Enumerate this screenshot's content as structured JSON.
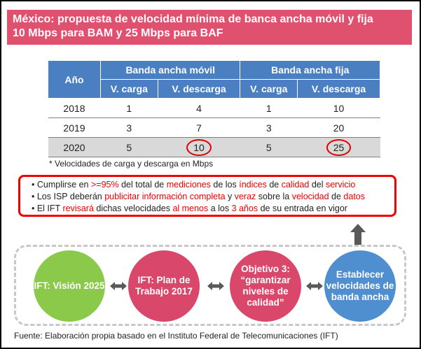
{
  "title": {
    "line1": "México: propuesta de velocidad mínima de banca ancha móvil y fija",
    "line2": "10 Mbps para BAM y 25 Mbps para BAF"
  },
  "table": {
    "col_year": "Año",
    "group_movil": "Banda ancha móvil",
    "group_fija": "Banda ancha fija",
    "sub_carga": "V. carga",
    "sub_descarga": "V. descarga",
    "rows": [
      {
        "year": "2018",
        "m_carga": "1",
        "m_descarga": "4",
        "f_carga": "1",
        "f_descarga": "10"
      },
      {
        "year": "2019",
        "m_carga": "3",
        "m_descarga": "7",
        "f_carga": "3",
        "f_descarga": "20"
      },
      {
        "year": "2020",
        "m_carga": "5",
        "m_descarga": "10",
        "f_carga": "5",
        "f_descarga": "25"
      }
    ]
  },
  "note": "* Velocidades de carga y descarga en Mbps",
  "bullets": {
    "b1": [
      "• Cumplirse en ",
      ">=95%",
      " del total de ",
      "mediciones",
      " de los ",
      "índices",
      " de ",
      "calidad",
      " del ",
      "servicio"
    ],
    "b2": [
      "• Los ISP deberán ",
      "publicitar información completa",
      " y ",
      "veraz",
      " sobre la ",
      "velocidad",
      " de ",
      "datos"
    ],
    "b3": [
      "• El IFT ",
      "revisará",
      " dichas velocidades ",
      "al menos",
      " a los ",
      "3 años",
      " de su entrada en vigor"
    ]
  },
  "circles": {
    "c1": "IFT: Visión 2025",
    "c2": "IFT: Plan de Trabajo 2017",
    "c3": "Objetivo 3: “garantizar niveles de calidad”",
    "c4": "Establecer velocidades de banda ancha"
  },
  "source": "Fuente: Elaboración propia basado en el Instituto Federal de Telecomunicaciones (IFT)",
  "colors": {
    "title_bg": "#e0506f",
    "header_bg": "#4a7fc1",
    "highlight": "#e00000",
    "green": "#8bc94a",
    "pink": "#d9476a",
    "blue": "#4f8fd0"
  }
}
